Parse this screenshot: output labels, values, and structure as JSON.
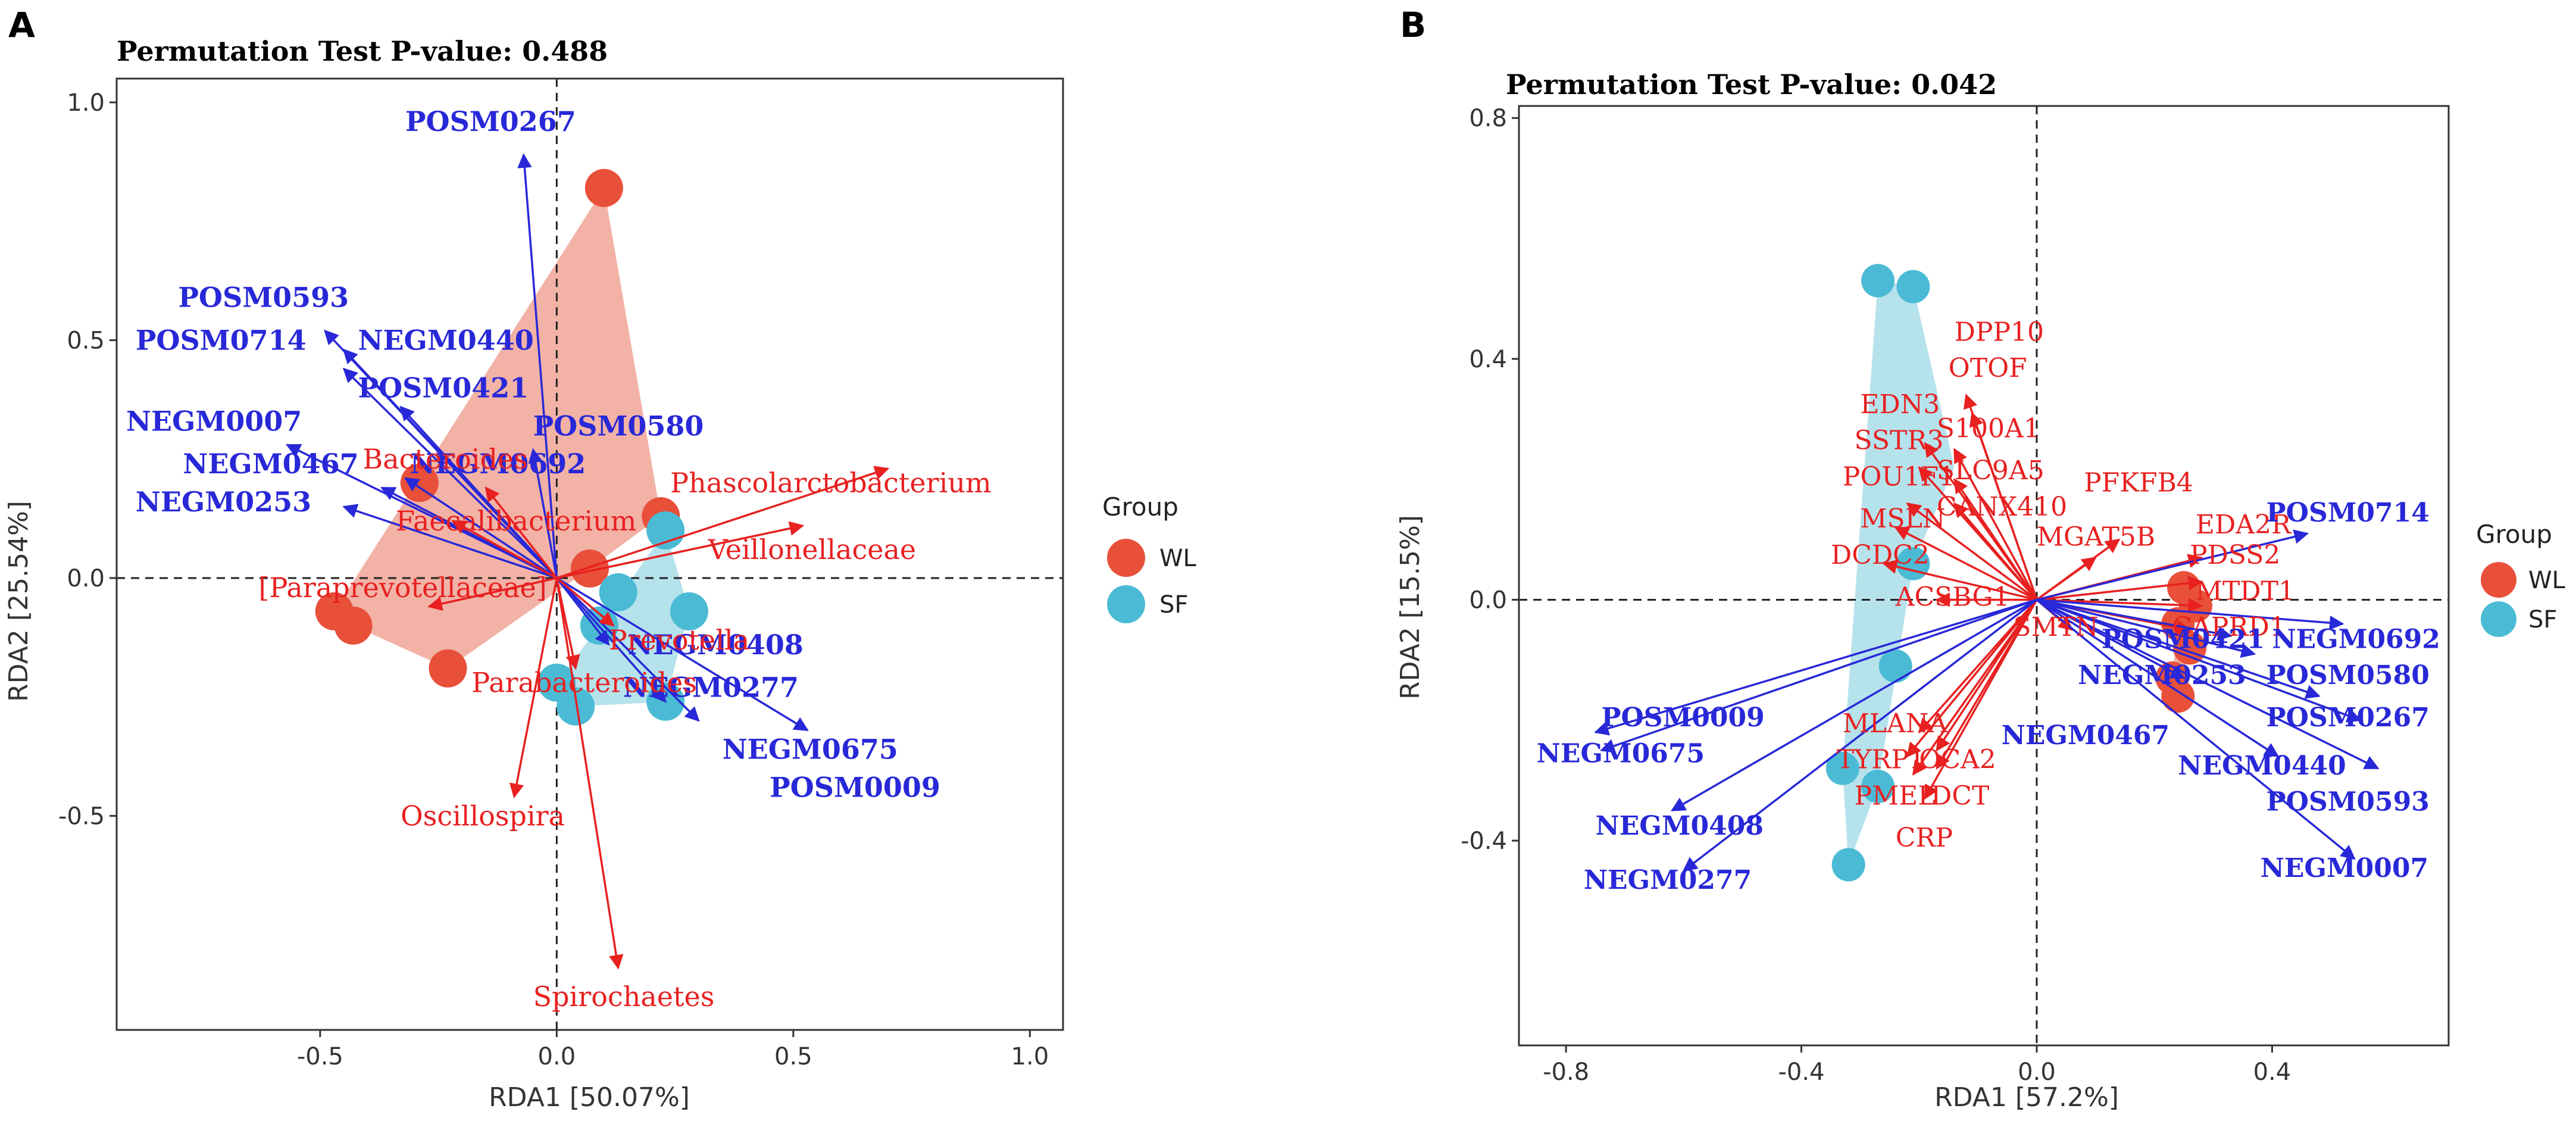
{
  "colors": {
    "WL": "#e8503a",
    "SF": "#4bbbd5",
    "WL_hull": "#f0a596",
    "SF_hull": "#a9dde9",
    "blue_vec": "#2828d8",
    "red_vec": "#e82020"
  },
  "chart_data": [
    {
      "type": "scatter",
      "panel": "A",
      "title": "Permutation Test P-value: 0.488",
      "xlabel": "RDA1 [50.07%]",
      "ylabel": "RDA2 [25.54%]",
      "xlim": [
        -0.93,
        1.07
      ],
      "ylim": [
        -0.95,
        1.05
      ],
      "xticks": [
        -0.5,
        0.0,
        0.5,
        1.0
      ],
      "xticklabels": [
        "-0.5",
        "0.0",
        "0.5",
        "1.0"
      ],
      "yticks": [
        -0.5,
        0.0,
        0.5,
        1.0
      ],
      "yticklabels": [
        "-0.5",
        "0.0",
        "0.5",
        "1.0"
      ],
      "legend": {
        "title": "Group",
        "entries": [
          "WL",
          "SF"
        ]
      },
      "points": [
        {
          "group": "WL",
          "x": 0.1,
          "y": 0.82
        },
        {
          "group": "WL",
          "x": -0.29,
          "y": 0.2
        },
        {
          "group": "WL",
          "x": 0.22,
          "y": 0.13
        },
        {
          "group": "WL",
          "x": 0.07,
          "y": 0.02
        },
        {
          "group": "WL",
          "x": -0.47,
          "y": -0.07
        },
        {
          "group": "WL",
          "x": -0.43,
          "y": -0.1
        },
        {
          "group": "WL",
          "x": -0.23,
          "y": -0.19
        },
        {
          "group": "SF",
          "x": 0.23,
          "y": 0.1
        },
        {
          "group": "SF",
          "x": 0.13,
          "y": -0.03
        },
        {
          "group": "SF",
          "x": 0.28,
          "y": -0.07
        },
        {
          "group": "SF",
          "x": 0.09,
          "y": -0.1
        },
        {
          "group": "SF",
          "x": 0.0,
          "y": -0.22
        },
        {
          "group": "SF",
          "x": 0.04,
          "y": -0.27
        },
        {
          "group": "SF",
          "x": 0.23,
          "y": -0.26
        }
      ],
      "hulls": {
        "WL": [
          [
            0.1,
            0.82
          ],
          [
            0.22,
            0.13
          ],
          [
            0.07,
            0.02
          ],
          [
            -0.23,
            -0.19
          ],
          [
            -0.43,
            -0.1
          ],
          [
            -0.47,
            -0.07
          ]
        ],
        "SF": [
          [
            0.23,
            0.1
          ],
          [
            0.28,
            -0.07
          ],
          [
            0.23,
            -0.26
          ],
          [
            0.04,
            -0.27
          ],
          [
            0.0,
            -0.22
          ],
          [
            0.09,
            -0.1
          ]
        ]
      },
      "vectors": [
        {
          "name": "POSM0267",
          "color": "blue",
          "x": -0.07,
          "y": 0.89,
          "lx": -0.32,
          "ly": 0.94
        },
        {
          "name": "POSM0593",
          "color": "blue",
          "x": -0.49,
          "y": 0.52,
          "lx": -0.8,
          "ly": 0.57
        },
        {
          "name": "POSM0714",
          "color": "blue",
          "x": -0.45,
          "y": 0.44,
          "lx": -0.89,
          "ly": 0.48
        },
        {
          "name": "NEGM0440",
          "color": "blue",
          "x": -0.45,
          "y": 0.48,
          "lx": -0.42,
          "ly": 0.48
        },
        {
          "name": "POSM0421",
          "color": "blue",
          "x": -0.33,
          "y": 0.36,
          "lx": -0.42,
          "ly": 0.38
        },
        {
          "name": "NEGM0007",
          "color": "blue",
          "x": -0.57,
          "y": 0.28,
          "lx": -0.91,
          "ly": 0.31
        },
        {
          "name": "POSM0580",
          "color": "blue",
          "x": -0.05,
          "y": 0.27,
          "lx": -0.05,
          "ly": 0.3
        },
        {
          "name": "NEGM0467",
          "color": "blue",
          "x": -0.37,
          "y": 0.19,
          "lx": -0.79,
          "ly": 0.22
        },
        {
          "name": "NEGM0692",
          "color": "blue",
          "x": -0.32,
          "y": 0.21,
          "lx": -0.31,
          "ly": 0.22
        },
        {
          "name": "NEGM0253",
          "color": "blue",
          "x": -0.45,
          "y": 0.15,
          "lx": -0.89,
          "ly": 0.14
        },
        {
          "name": "NEGM0408",
          "color": "blue",
          "x": 0.11,
          "y": -0.14,
          "lx": 0.15,
          "ly": -0.16
        },
        {
          "name": "NEGM0277",
          "color": "blue",
          "x": 0.53,
          "y": -0.32,
          "lx": 0.14,
          "ly": -0.25
        },
        {
          "name": "NEGM0675",
          "color": "blue",
          "x": 0.3,
          "y": -0.3,
          "lx": 0.35,
          "ly": -0.38
        },
        {
          "name": "POSM0009",
          "color": "blue",
          "x": 0.23,
          "y": -0.26,
          "lx": 0.45,
          "ly": -0.46
        },
        {
          "name": "Bacteroides",
          "color": "red",
          "x": -0.15,
          "y": 0.19,
          "lx": -0.41,
          "ly": 0.23
        },
        {
          "name": "Faecalibacterium",
          "color": "red",
          "x": -0.22,
          "y": 0.12,
          "lx": -0.34,
          "ly": 0.1
        },
        {
          "name": "Phascolarctobacterium",
          "color": "red",
          "x": 0.7,
          "y": 0.23,
          "lx": 0.24,
          "ly": 0.18
        },
        {
          "name": "Veillonellaceae",
          "color": "red",
          "x": 0.52,
          "y": 0.11,
          "lx": 0.32,
          "ly": 0.04
        },
        {
          "name": "[Paraprevotellaceae]",
          "color": "red",
          "x": -0.27,
          "y": -0.06,
          "lx": -0.63,
          "ly": -0.04
        },
        {
          "name": "Prevotella",
          "color": "red",
          "x": 0.12,
          "y": -0.1,
          "lx": 0.11,
          "ly": -0.15
        },
        {
          "name": "Parabacteroides",
          "color": "red",
          "x": 0.04,
          "y": -0.19,
          "lx": -0.18,
          "ly": -0.24
        },
        {
          "name": "Oscillospira",
          "color": "red",
          "x": -0.09,
          "y": -0.46,
          "lx": -0.33,
          "ly": -0.52
        },
        {
          "name": "Spirochaetes",
          "color": "red",
          "x": 0.13,
          "y": -0.82,
          "lx": -0.05,
          "ly": -0.9
        }
      ]
    },
    {
      "type": "scatter",
      "panel": "B",
      "title": "Permutation Test P-value: 0.042",
      "xlabel": "RDA1 [57.2%]",
      "ylabel": "RDA2 [15.5%]",
      "xlim": [
        -0.88,
        0.7
      ],
      "ylim": [
        -0.74,
        0.82
      ],
      "xticks": [
        -0.8,
        -0.4,
        0.0,
        0.4
      ],
      "xticklabels": [
        "-0.8",
        "-0.4",
        "0.0",
        "0.4"
      ],
      "yticks": [
        -0.4,
        0.0,
        0.4,
        0.8
      ],
      "yticklabels": [
        "-0.4",
        "0.0",
        "0.4",
        "0.8"
      ],
      "legend": {
        "title": "Group",
        "entries": [
          "WL",
          "SF"
        ]
      },
      "points": [
        {
          "group": "WL",
          "x": 0.25,
          "y": 0.02
        },
        {
          "group": "WL",
          "x": 0.27,
          "y": -0.01
        },
        {
          "group": "WL",
          "x": 0.24,
          "y": -0.04
        },
        {
          "group": "WL",
          "x": 0.26,
          "y": -0.08
        },
        {
          "group": "WL",
          "x": 0.23,
          "y": -0.13
        },
        {
          "group": "WL",
          "x": 0.24,
          "y": -0.16
        },
        {
          "group": "SF",
          "x": -0.27,
          "y": 0.53
        },
        {
          "group": "SF",
          "x": -0.21,
          "y": 0.52
        },
        {
          "group": "SF",
          "x": -0.21,
          "y": 0.06
        },
        {
          "group": "SF",
          "x": -0.24,
          "y": -0.11
        },
        {
          "group": "SF",
          "x": -0.33,
          "y": -0.28
        },
        {
          "group": "SF",
          "x": -0.27,
          "y": -0.31
        },
        {
          "group": "SF",
          "x": -0.32,
          "y": -0.44
        }
      ],
      "hulls": {
        "WL": [
          [
            0.25,
            0.02
          ],
          [
            0.27,
            -0.01
          ],
          [
            0.26,
            -0.08
          ],
          [
            0.24,
            -0.16
          ],
          [
            0.23,
            -0.13
          ],
          [
            0.24,
            -0.04
          ]
        ],
        "SF": [
          [
            -0.27,
            0.53
          ],
          [
            -0.21,
            0.52
          ],
          [
            -0.14,
            0.22
          ],
          [
            -0.21,
            0.06
          ],
          [
            -0.27,
            -0.31
          ],
          [
            -0.32,
            -0.44
          ],
          [
            -0.33,
            -0.28
          ]
        ]
      },
      "vectors": [
        {
          "name": "DPP10",
          "color": "red",
          "x": -0.12,
          "y": 0.34,
          "lx": -0.14,
          "ly": 0.43
        },
        {
          "name": "OTOF",
          "color": "red",
          "x": -0.11,
          "y": 0.31,
          "lx": -0.15,
          "ly": 0.37
        },
        {
          "name": "EDN3",
          "color": "red",
          "x": -0.19,
          "y": 0.26,
          "lx": -0.3,
          "ly": 0.31
        },
        {
          "name": "S100A1",
          "color": "red",
          "x": -0.14,
          "y": 0.25,
          "lx": -0.17,
          "ly": 0.27
        },
        {
          "name": "SSTR3",
          "color": "red",
          "x": -0.2,
          "y": 0.22,
          "lx": -0.31,
          "ly": 0.25
        },
        {
          "name": "SLC9A5",
          "color": "red",
          "x": -0.14,
          "y": 0.2,
          "lx": -0.17,
          "ly": 0.2
        },
        {
          "name": "POU1F1",
          "color": "red",
          "x": -0.22,
          "y": 0.16,
          "lx": -0.33,
          "ly": 0.19
        },
        {
          "name": "CANX410",
          "color": "red",
          "x": -0.14,
          "y": 0.16,
          "lx": -0.17,
          "ly": 0.14
        },
        {
          "name": "MSLN",
          "color": "red",
          "x": -0.24,
          "y": 0.12,
          "lx": -0.3,
          "ly": 0.12
        },
        {
          "name": "DCDC2",
          "color": "red",
          "x": -0.26,
          "y": 0.06,
          "lx": -0.35,
          "ly": 0.06
        },
        {
          "name": "ACSBG1",
          "color": "red",
          "x": -0.17,
          "y": 0.0,
          "lx": -0.24,
          "ly": -0.01
        },
        {
          "name": "PFKFB4",
          "color": "red",
          "x": 0.14,
          "y": 0.1,
          "lx": 0.08,
          "ly": 0.18
        },
        {
          "name": "MGAT5B",
          "color": "red",
          "x": 0.1,
          "y": 0.07,
          "lx": 0.0,
          "ly": 0.09
        },
        {
          "name": "EDA2R",
          "color": "red",
          "x": 0.28,
          "y": 0.07,
          "lx": 0.27,
          "ly": 0.11
        },
        {
          "name": "PDSS2",
          "color": "red",
          "x": 0.28,
          "y": 0.03,
          "lx": 0.26,
          "ly": 0.06
        },
        {
          "name": "MTDT1",
          "color": "red",
          "x": 0.28,
          "y": -0.01,
          "lx": 0.27,
          "ly": 0.0
        },
        {
          "name": "CAPRD1",
          "color": "red",
          "x": 0.26,
          "y": -0.05,
          "lx": 0.23,
          "ly": -0.06
        },
        {
          "name": "SMTN",
          "color": "red",
          "x": 0.06,
          "y": -0.05,
          "lx": -0.04,
          "ly": -0.06
        },
        {
          "name": "MLANA",
          "color": "red",
          "x": -0.2,
          "y": -0.22,
          "lx": -0.33,
          "ly": -0.22
        },
        {
          "name": "TYRP1",
          "color": "red",
          "x": -0.22,
          "y": -0.26,
          "lx": -0.34,
          "ly": -0.28
        },
        {
          "name": "OCA2",
          "color": "red",
          "x": -0.17,
          "y": -0.25,
          "lx": -0.2,
          "ly": -0.28
        },
        {
          "name": "PMEL",
          "color": "red",
          "x": -0.21,
          "y": -0.29,
          "lx": -0.31,
          "ly": -0.34
        },
        {
          "name": "DCT",
          "color": "red",
          "x": -0.17,
          "y": -0.28,
          "lx": -0.18,
          "ly": -0.34
        },
        {
          "name": "CRP",
          "color": "red",
          "x": -0.19,
          "y": -0.33,
          "lx": -0.24,
          "ly": -0.41
        },
        {
          "name": "POSM0714",
          "color": "blue",
          "x": 0.46,
          "y": 0.11,
          "lx": 0.39,
          "ly": 0.13
        },
        {
          "name": "NEGM0692",
          "color": "blue",
          "x": 0.52,
          "y": -0.04,
          "lx": 0.4,
          "ly": -0.08
        },
        {
          "name": "POSM0421",
          "color": "blue",
          "x": 0.33,
          "y": -0.06,
          "lx": 0.11,
          "ly": -0.08
        },
        {
          "name": "NEGM0253",
          "color": "blue",
          "x": 0.37,
          "y": -0.09,
          "lx": 0.07,
          "ly": -0.14
        },
        {
          "name": "POSM0580",
          "color": "blue",
          "x": 0.48,
          "y": -0.16,
          "lx": 0.39,
          "ly": -0.14
        },
        {
          "name": "POSM0267",
          "color": "blue",
          "x": 0.55,
          "y": -0.2,
          "lx": 0.39,
          "ly": -0.21
        },
        {
          "name": "NEGM0467",
          "color": "blue",
          "x": 0.25,
          "y": -0.13,
          "lx": -0.06,
          "ly": -0.24
        },
        {
          "name": "NEGM0440",
          "color": "blue",
          "x": 0.41,
          "y": -0.26,
          "lx": 0.24,
          "ly": -0.29
        },
        {
          "name": "POSM0593",
          "color": "blue",
          "x": 0.58,
          "y": -0.28,
          "lx": 0.39,
          "ly": -0.35
        },
        {
          "name": "NEGM0007",
          "color": "blue",
          "x": 0.54,
          "y": -0.43,
          "lx": 0.38,
          "ly": -0.46
        },
        {
          "name": "POSM0009",
          "color": "blue",
          "x": -0.75,
          "y": -0.22,
          "lx": -0.74,
          "ly": -0.21
        },
        {
          "name": "NEGM0675",
          "color": "blue",
          "x": -0.74,
          "y": -0.25,
          "lx": -0.85,
          "ly": -0.27
        },
        {
          "name": "NEGM0408",
          "color": "blue",
          "x": -0.62,
          "y": -0.35,
          "lx": -0.75,
          "ly": -0.39
        },
        {
          "name": "NEGM0277",
          "color": "blue",
          "x": -0.6,
          "y": -0.45,
          "lx": -0.77,
          "ly": -0.48
        }
      ]
    }
  ]
}
